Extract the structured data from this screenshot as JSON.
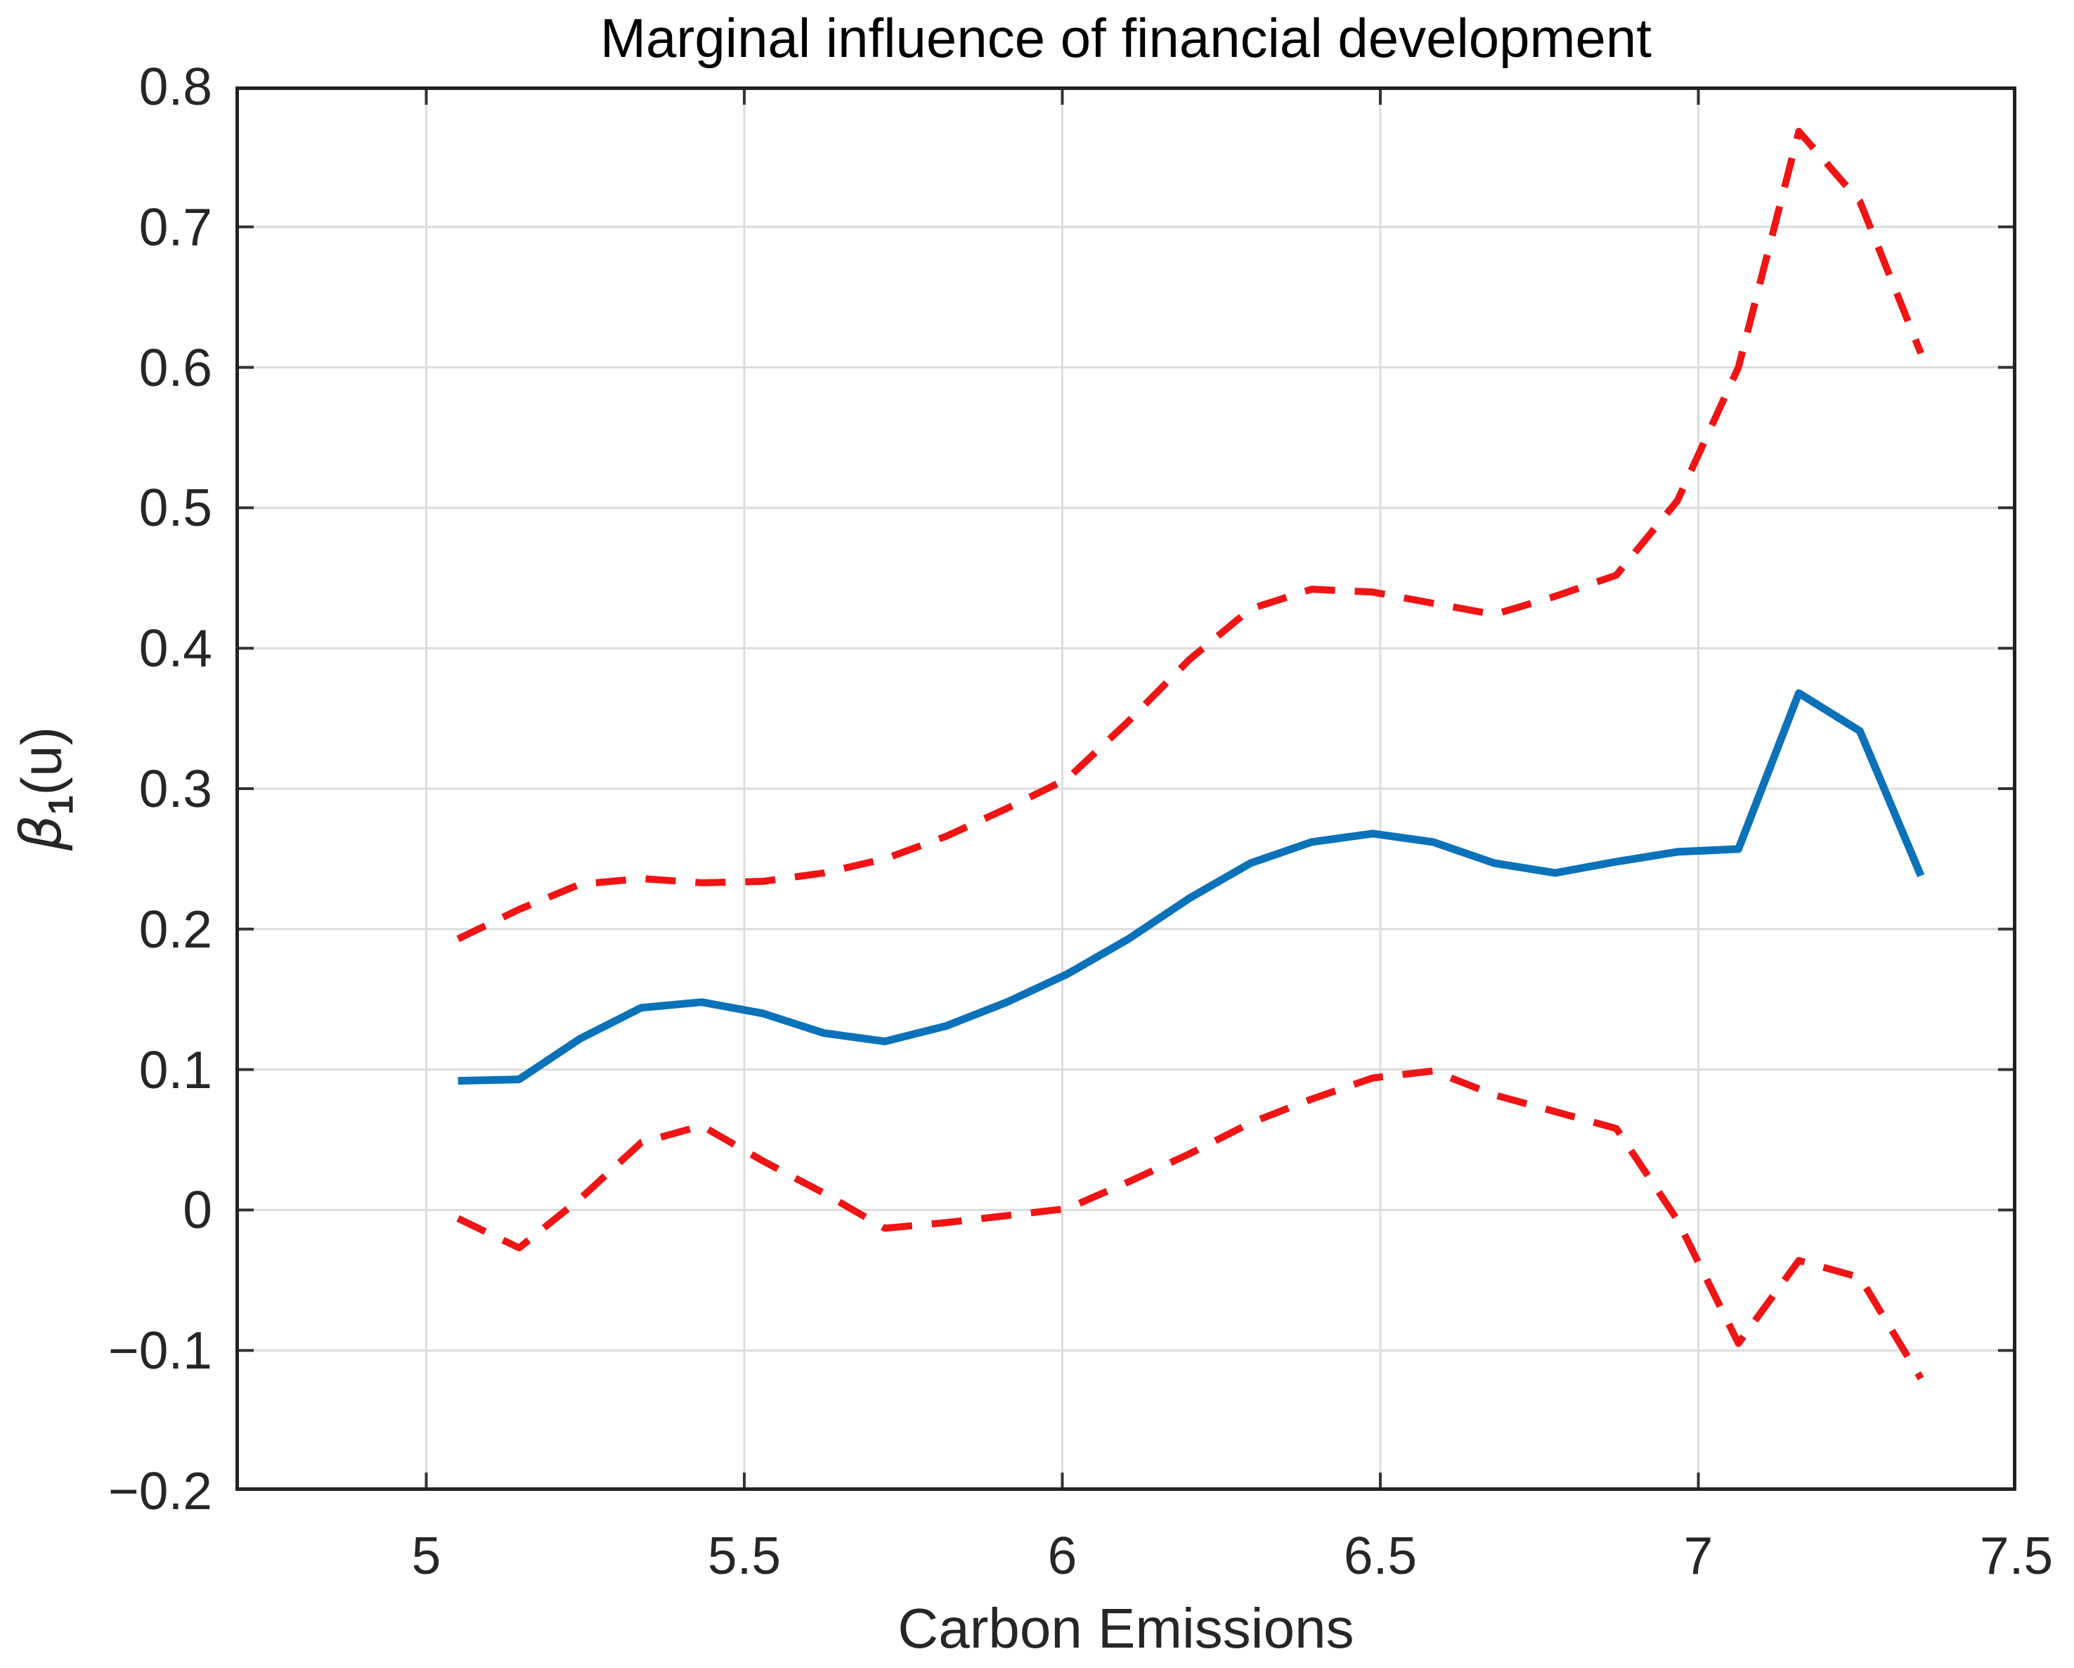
{
  "chart_data": {
    "type": "line",
    "title": "Marginal influence of financial development",
    "xlabel": "Carbon Emissions",
    "ylabel": {
      "beta": "β",
      "sub": "1",
      "rest": "(u)"
    },
    "xlim": [
      4.7,
      7.5
    ],
    "ylim": [
      -0.2,
      0.8
    ],
    "grid": true,
    "legend_position": "none",
    "axis_color": "#222222",
    "grid_color": "#dcdcdc",
    "tick_color": "#333333",
    "xticks": {
      "values": [
        5,
        5.5,
        6,
        6.5,
        7,
        7.5
      ],
      "labels": [
        "5",
        "5.5",
        "6",
        "6.5",
        "7",
        "7.5"
      ]
    },
    "yticks": {
      "values": [
        0.8,
        0.7,
        0.6,
        0.5,
        0.4,
        0.3,
        0.2,
        0.1,
        0,
        -0.1,
        -0.2
      ],
      "labels": [
        "0.8",
        "0.7",
        "0.6",
        "0.5",
        "0.4",
        "0.3",
        "0.2",
        "0.1",
        "0",
        "−0.1",
        "−0.2"
      ]
    },
    "x": [
      5.05,
      5.146,
      5.242,
      5.338,
      5.433,
      5.529,
      5.625,
      5.721,
      5.817,
      5.913,
      6.008,
      6.104,
      6.2,
      6.296,
      6.392,
      6.488,
      6.583,
      6.679,
      6.775,
      6.871,
      6.967,
      7.063,
      7.158,
      7.254,
      7.35
    ],
    "series": [
      {
        "name": "estimate",
        "color": "#0b72b9",
        "style": "solid",
        "width": 11,
        "values": [
          0.092,
          0.093,
          0.122,
          0.144,
          0.148,
          0.14,
          0.126,
          0.12,
          0.131,
          0.148,
          0.168,
          0.193,
          0.222,
          0.247,
          0.262,
          0.268,
          0.262,
          0.247,
          0.24,
          0.248,
          0.255,
          0.257,
          0.368,
          0.341,
          0.238
        ]
      },
      {
        "name": "upper-confidence-band",
        "color": "#f01414",
        "style": "dashed",
        "width": 10,
        "values": [
          0.193,
          0.214,
          0.232,
          0.236,
          0.233,
          0.234,
          0.24,
          0.25,
          0.266,
          0.286,
          0.307,
          0.348,
          0.392,
          0.428,
          0.442,
          0.44,
          0.432,
          0.424,
          0.437,
          0.452,
          0.505,
          0.6,
          0.768,
          0.718,
          0.61
        ]
      },
      {
        "name": "lower-confidence-band",
        "color": "#f01414",
        "style": "dashed",
        "width": 10,
        "values": [
          -0.006,
          -0.027,
          0.008,
          0.048,
          0.06,
          0.035,
          0.012,
          -0.013,
          -0.009,
          -0.004,
          0.001,
          0.02,
          0.04,
          0.062,
          0.079,
          0.094,
          0.099,
          0.082,
          0.07,
          0.058,
          -0.007,
          -0.095,
          -0.036,
          -0.048,
          -0.12
        ]
      }
    ]
  }
}
